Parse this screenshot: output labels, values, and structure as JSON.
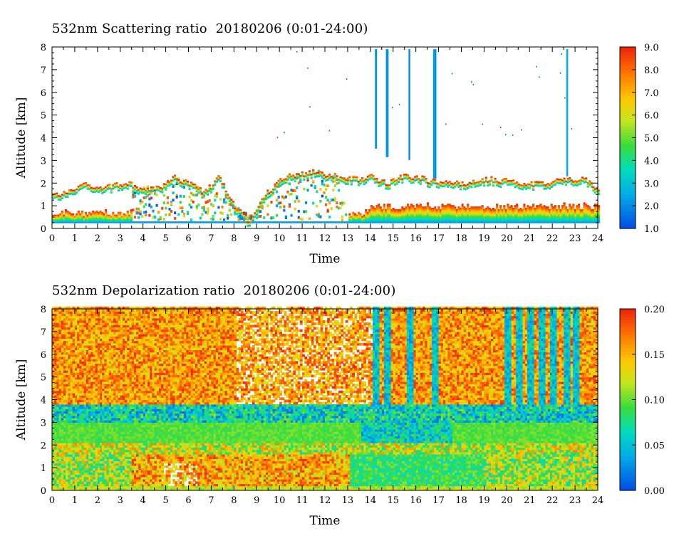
{
  "chart_data": [
    {
      "type": "heatmap",
      "title": "532nm Scattering ratio  20180206 (0:01-24:00)",
      "xlabel": "Time",
      "ylabel": "Altitude [km]",
      "xlim": [
        0,
        24
      ],
      "ylim": [
        0,
        8
      ],
      "x_ticks": [
        "0",
        "1",
        "2",
        "3",
        "4",
        "5",
        "6",
        "7",
        "8",
        "9",
        "10",
        "11",
        "12",
        "13",
        "14",
        "15",
        "16",
        "17",
        "18",
        "19",
        "20",
        "21",
        "22",
        "23",
        "24"
      ],
      "y_ticks": [
        "0",
        "1",
        "2",
        "3",
        "4",
        "5",
        "6",
        "7",
        "8"
      ],
      "colorbar": {
        "min": 1.0,
        "max": 9.0,
        "ticks": [
          "1.0",
          "2.0",
          "3.0",
          "4.0",
          "5.0",
          "6.0",
          "7.0",
          "8.0",
          "9.0"
        ]
      },
      "features": {
        "boundary_layer_top_km": [
          1.5,
          1.6,
          2.0,
          1.8,
          1.9,
          2.0,
          1.7,
          1.8,
          2.3,
          2.0,
          1.6,
          2.3,
          1.0,
          0.3,
          1.5,
          2.2,
          2.4,
          2.5,
          2.4,
          2.3,
          2.2,
          2.3,
          2.0,
          2.3,
          2.3,
          2.1,
          2.1,
          2.0,
          2.1,
          2.2,
          2.1,
          2.0,
          2.0,
          2.1,
          2.2,
          2.2,
          1.8
        ],
        "cirrus_columns_h": [
          14.2,
          14.7,
          15.7,
          16.8,
          22.6
        ]
      }
    },
    {
      "type": "heatmap",
      "title": "532nm Depolarization ratio  20180206 (0:01-24:00)",
      "xlabel": "Time",
      "ylabel": "Altitude [km]",
      "xlim": [
        0,
        24
      ],
      "ylim": [
        0,
        8
      ],
      "x_ticks": [
        "0",
        "1",
        "2",
        "3",
        "4",
        "5",
        "6",
        "7",
        "8",
        "9",
        "10",
        "11",
        "12",
        "13",
        "14",
        "15",
        "16",
        "17",
        "18",
        "19",
        "20",
        "21",
        "22",
        "23",
        "24"
      ],
      "y_ticks": [
        "0",
        "1",
        "2",
        "3",
        "4",
        "5",
        "6",
        "7",
        "8"
      ],
      "colorbar": {
        "min": 0.0,
        "max": 0.2,
        "ticks": [
          "0.00",
          "0.05",
          "0.10",
          "0.15",
          "0.20"
        ]
      },
      "features": {
        "low_depol_layer_km": [
          0,
          1.5
        ],
        "mid_layer_km": [
          2.0,
          3.0
        ],
        "cirrus_columns_h": [
          14.2,
          14.7,
          15.7,
          16.8,
          20.0,
          20.5,
          21.0,
          21.5,
          22.0,
          22.6,
          23.0
        ]
      }
    }
  ]
}
